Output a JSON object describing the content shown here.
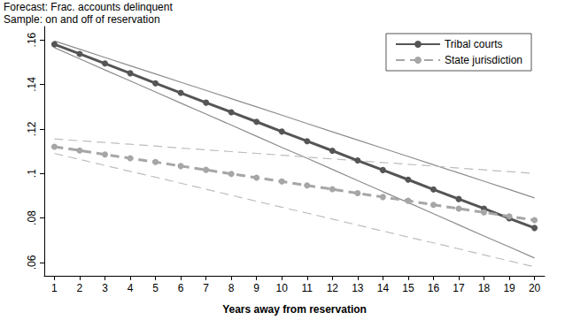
{
  "chart_data": {
    "type": "line",
    "title": "Forecast: Frac. accounts delinquent",
    "subtitle": "Sample: on and off of reservation",
    "x_label": "Years away from reservation",
    "x": [
      1,
      2,
      3,
      4,
      5,
      6,
      7,
      8,
      9,
      10,
      11,
      12,
      13,
      14,
      15,
      16,
      17,
      18,
      19,
      20
    ],
    "xlim": [
      0.6,
      20.4
    ],
    "xticks": [
      1,
      2,
      3,
      4,
      5,
      6,
      7,
      8,
      9,
      10,
      11,
      12,
      13,
      14,
      15,
      16,
      17,
      18,
      19,
      20
    ],
    "ylim": [
      0.054,
      0.166
    ],
    "yticks": [
      {
        "value": 0.06,
        "label": ".06"
      },
      {
        "value": 0.08,
        "label": ".08"
      },
      {
        "value": 0.1,
        "label": ".1"
      },
      {
        "value": 0.12,
        "label": ".12"
      },
      {
        "value": 0.14,
        "label": ".14"
      },
      {
        "value": 0.16,
        "label": ".16"
      }
    ],
    "grid": false,
    "legend": "top-right",
    "series": [
      {
        "color": "#8c8c8c",
        "line_style": "solid",
        "marker": "none",
        "values": [
          0.1595,
          0.1558,
          0.1521,
          0.1484,
          0.1447,
          0.141,
          0.1373,
          0.1336,
          0.1299,
          0.1262,
          0.1224,
          0.1187,
          0.115,
          0.1113,
          0.1076,
          0.1039,
          0.1002,
          0.0965,
          0.0928,
          0.089
        ]
      },
      {
        "color": "#8c8c8c",
        "line_style": "solid",
        "marker": "none",
        "values": [
          0.1565,
          0.1515,
          0.1465,
          0.1416,
          0.1366,
          0.1316,
          0.1267,
          0.1217,
          0.1167,
          0.1117,
          0.1068,
          0.1018,
          0.0968,
          0.0918,
          0.0869,
          0.0819,
          0.0769,
          0.0719,
          0.067,
          0.062
        ]
      },
      {
        "color": "#bdbdbd",
        "line_style": "dashed",
        "marker": "none",
        "values": [
          0.1155,
          0.1147,
          0.1139,
          0.1131,
          0.1123,
          0.1114,
          0.1106,
          0.1098,
          0.109,
          0.1082,
          0.1073,
          0.1065,
          0.1057,
          0.1049,
          0.1041,
          0.1033,
          0.1024,
          0.1016,
          0.1008,
          0.1
        ]
      },
      {
        "color": "#bdbdbd",
        "line_style": "dashed",
        "marker": "none",
        "values": [
          0.109,
          0.1063,
          0.1036,
          0.1009,
          0.0983,
          0.0956,
          0.0929,
          0.0902,
          0.0875,
          0.0848,
          0.0822,
          0.0795,
          0.0768,
          0.0741,
          0.0714,
          0.0688,
          0.0661,
          0.0634,
          0.0607,
          0.058
        ]
      },
      {
        "name": "Tribal courts",
        "color": "#555555",
        "line_style": "solid",
        "marker": "circle",
        "values": [
          0.158,
          0.1537,
          0.1494,
          0.145,
          0.1405,
          0.1362,
          0.1318,
          0.1275,
          0.1232,
          0.1188,
          0.1145,
          0.1102,
          0.1058,
          0.1015,
          0.0972,
          0.0928,
          0.0885,
          0.0842,
          0.0798,
          0.0755
        ]
      },
      {
        "name": "State jurisdiction",
        "color": "#a6a6a6",
        "line_style": "dashed",
        "marker": "circle",
        "values": [
          0.112,
          0.1103,
          0.1085,
          0.1068,
          0.1051,
          0.1033,
          0.1016,
          0.0998,
          0.0981,
          0.0964,
          0.0946,
          0.0929,
          0.0911,
          0.0894,
          0.0877,
          0.0859,
          0.0842,
          0.0825,
          0.0807,
          0.079
        ]
      }
    ]
  }
}
